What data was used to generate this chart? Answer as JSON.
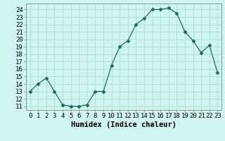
{
  "x": [
    0,
    1,
    2,
    3,
    4,
    5,
    6,
    7,
    8,
    9,
    10,
    11,
    12,
    13,
    14,
    15,
    16,
    17,
    18,
    19,
    20,
    21,
    22,
    23
  ],
  "y": [
    13,
    14,
    14.8,
    13,
    11.2,
    11,
    11,
    11.2,
    13,
    13,
    16.5,
    19,
    19.8,
    22,
    22.8,
    24,
    24,
    24.2,
    23.5,
    21,
    19.8,
    18.2,
    19.2,
    15.5
  ],
  "line_color": "#1a6b5a",
  "marker": "D",
  "marker_size": 2.5,
  "bg_color": "#cef5ef",
  "grid_color": "#b0ddd8",
  "xlabel": "Humidex (Indice chaleur)",
  "xlabel_fontsize": 7.5,
  "xlim": [
    -0.5,
    23.5
  ],
  "ylim": [
    10.5,
    24.8
  ],
  "yticks": [
    11,
    12,
    13,
    14,
    15,
    16,
    17,
    18,
    19,
    20,
    21,
    22,
    23,
    24
  ],
  "xticks": [
    0,
    1,
    2,
    3,
    4,
    5,
    6,
    7,
    8,
    9,
    10,
    11,
    12,
    13,
    14,
    15,
    16,
    17,
    18,
    19,
    20,
    21,
    22,
    23
  ],
  "tick_fontsize": 6.5
}
